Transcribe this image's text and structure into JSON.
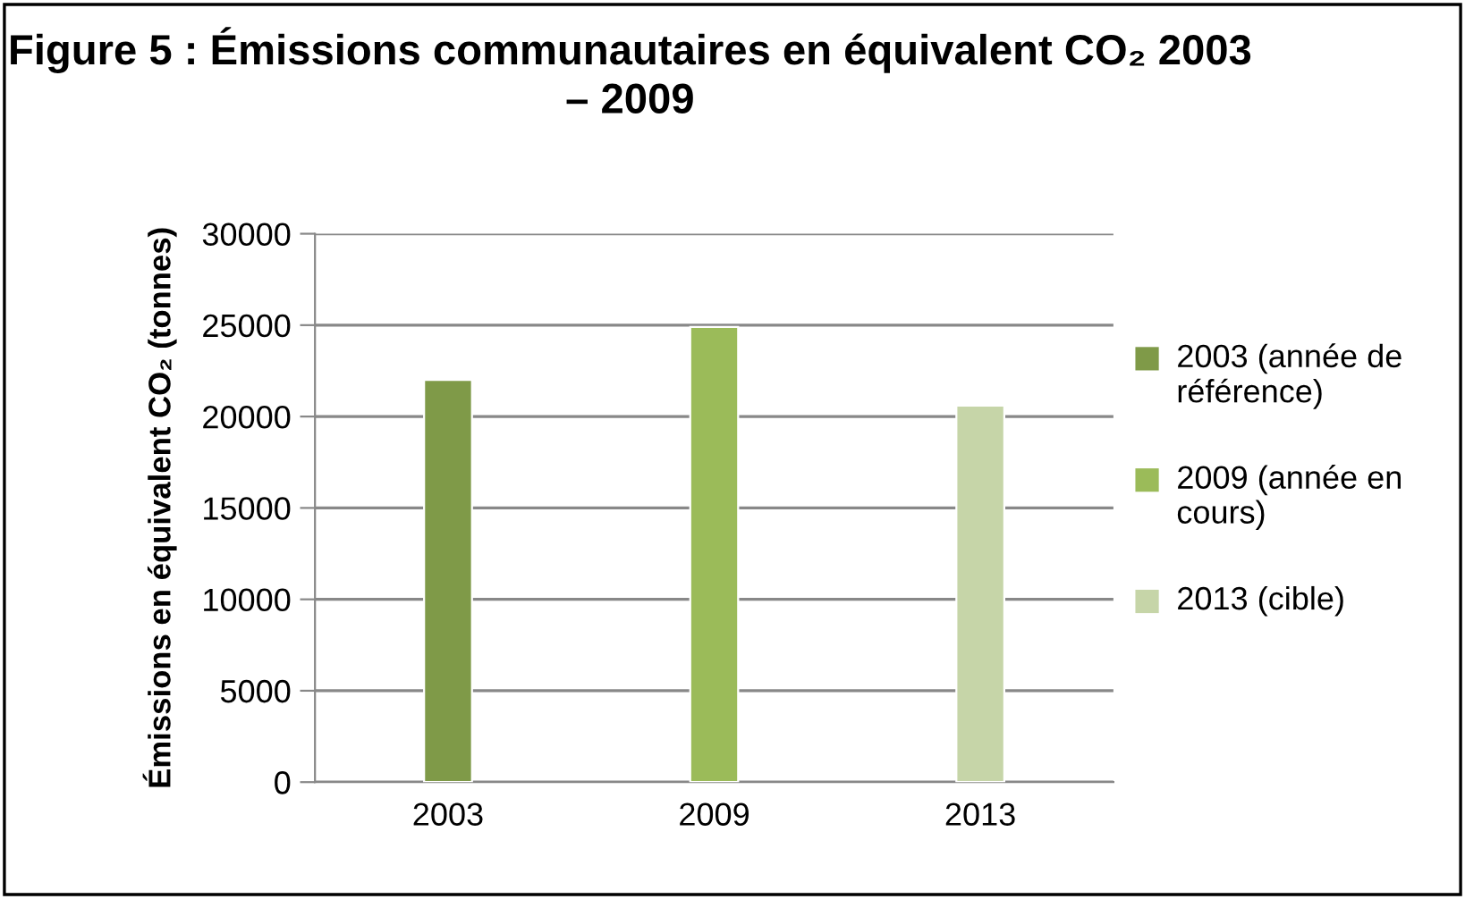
{
  "chart_data": {
    "type": "bar",
    "title": "Figure 5 : Émissions communautaires en équivalent CO₂ 2003 – 2009",
    "ylabel": "Émissions en équivalent CO₂ (tonnes)",
    "categories": [
      "2003",
      "2009",
      "2013"
    ],
    "series": [
      {
        "name": "2003 (année de référence)",
        "color": "#7f9a48",
        "values": [
          22000,
          null,
          null
        ]
      },
      {
        "name": "2009 (année en cours)",
        "color": "#9bbb59",
        "values": [
          null,
          24900,
          null
        ]
      },
      {
        "name": "2013 (cible)",
        "color": "#c6d5a8",
        "values": [
          null,
          null,
          20600
        ]
      }
    ],
    "ylim": [
      0,
      30000
    ],
    "yticks": [
      0,
      5000,
      10000,
      15000,
      20000,
      25000,
      30000
    ],
    "grid": "y",
    "legend": "right"
  }
}
